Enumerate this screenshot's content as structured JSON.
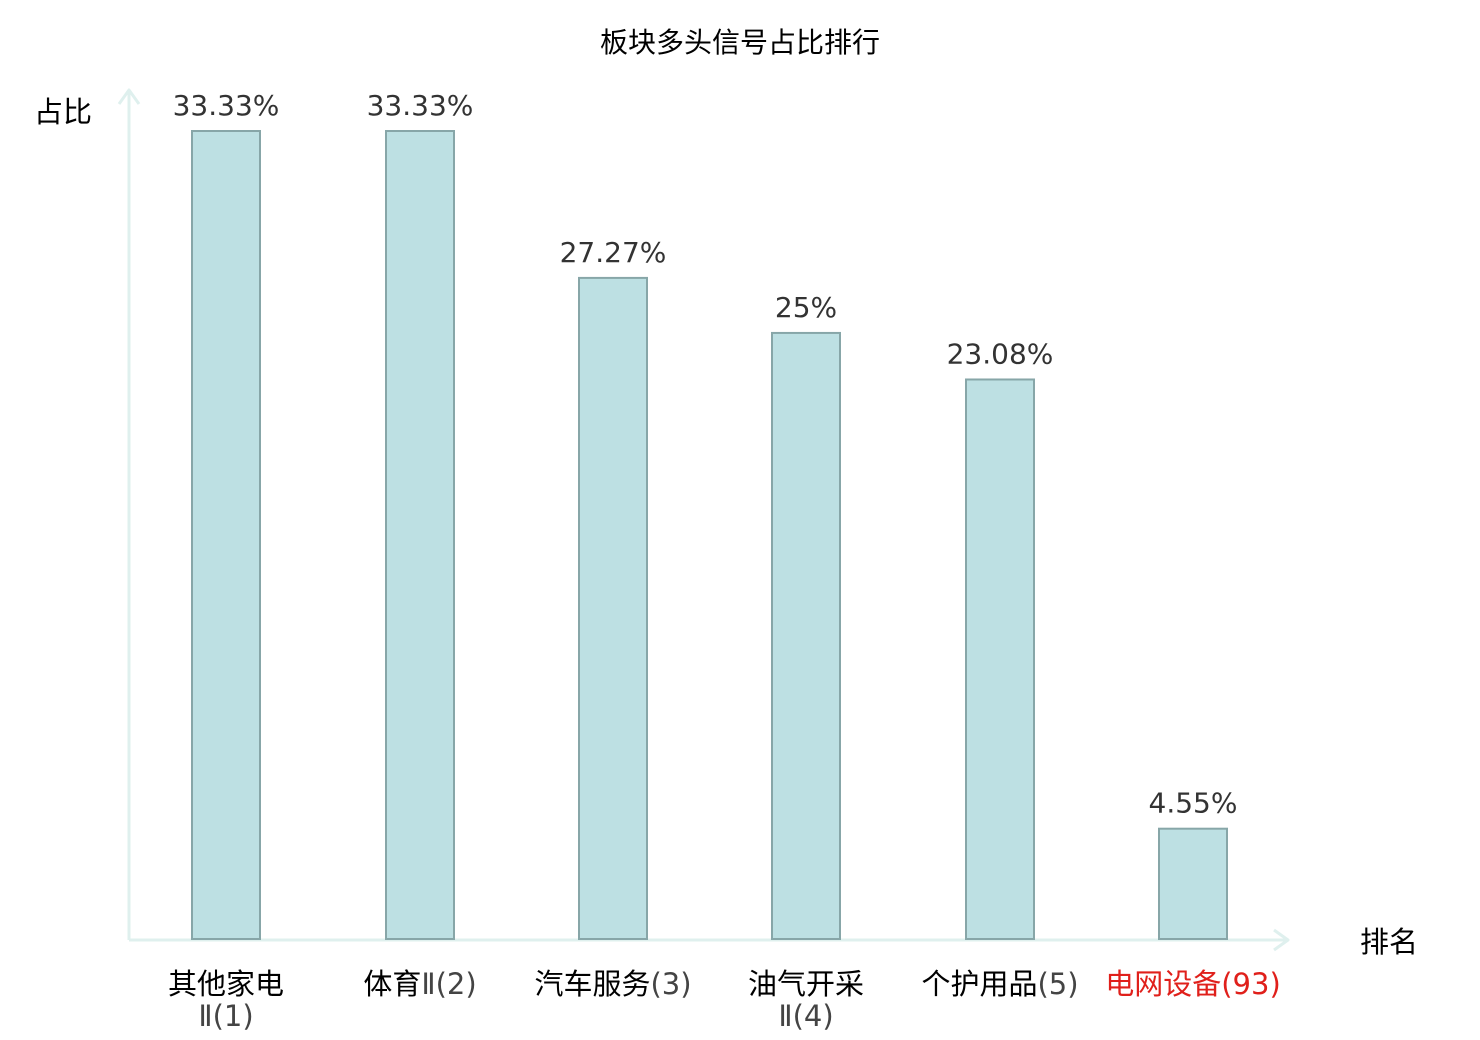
{
  "chart_data": {
    "type": "bar",
    "title": "板块多头信号占比排行",
    "ylabel": "占比",
    "xlabel": "排名",
    "ylim": [
      0,
      33.33
    ],
    "grid": false,
    "categories": [
      {
        "name": "其他家电",
        "rank": "Ⅱ(1)",
        "highlight": false
      },
      {
        "name": "体育",
        "rank": "Ⅱ(2)",
        "highlight": false
      },
      {
        "name": "汽车服务",
        "rank": "(3)",
        "highlight": false
      },
      {
        "name": "油气开采",
        "rank": "Ⅱ(4)",
        "highlight": false
      },
      {
        "name": "个护用品",
        "rank": "(5)",
        "highlight": false
      },
      {
        "name": "电网设备",
        "rank": "(93)",
        "highlight": true
      }
    ],
    "values": [
      33.33,
      33.33,
      27.27,
      25,
      23.08,
      4.55
    ],
    "value_labels": [
      "33.33%",
      "33.33%",
      "27.27%",
      "25%",
      "23.08%",
      "4.55%"
    ],
    "colors": {
      "bar_fill": "#bde0e3",
      "bar_stroke": "#87a6a8",
      "axis": "#dff0ee",
      "text": "#000000",
      "value_text": "#333333",
      "label_gray": "#444444",
      "highlight": "#e0201b"
    }
  }
}
